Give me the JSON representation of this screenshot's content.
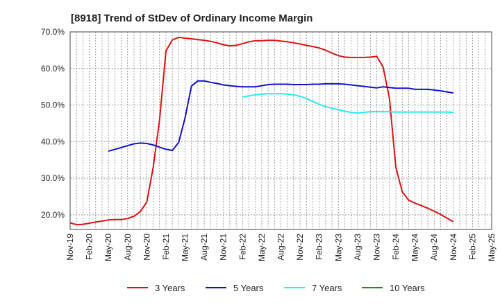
{
  "chart_data": {
    "type": "line",
    "title": "[8918]  Trend of StDev of Ordinary Income Margin",
    "x": [
      "Nov-19",
      "Feb-20",
      "May-20",
      "Aug-20",
      "Nov-20",
      "Feb-21",
      "May-21",
      "Aug-21",
      "Nov-21",
      "Feb-22",
      "May-22",
      "Aug-22",
      "Nov-22",
      "Feb-23",
      "May-23",
      "Aug-23",
      "Nov-23",
      "Feb-24",
      "May-24",
      "Aug-24",
      "Nov-24",
      "Feb-25",
      "May-25"
    ],
    "y_ticks": [
      "20.0%",
      "30.0%",
      "40.0%",
      "50.0%",
      "60.0%",
      "70.0%"
    ],
    "ylim": [
      16,
      70
    ],
    "grid": true,
    "legend_position": "bottom",
    "series": [
      {
        "name": "3 Years",
        "color": "#dd1111",
        "points": [
          [
            0,
            17.8
          ],
          [
            1,
            17.3
          ],
          [
            2,
            17.4
          ],
          [
            3,
            17.7
          ],
          [
            4,
            18.0
          ],
          [
            5,
            18.3
          ],
          [
            6,
            18.6
          ],
          [
            7,
            18.7
          ],
          [
            8,
            18.7
          ],
          [
            9,
            19.0
          ],
          [
            10,
            19.6
          ],
          [
            11,
            20.9
          ],
          [
            12,
            23.5
          ],
          [
            13,
            33.0
          ],
          [
            14,
            46.0
          ],
          [
            15,
            64.8
          ],
          [
            16,
            67.8
          ],
          [
            17,
            68.5
          ],
          [
            18,
            68.3
          ],
          [
            19,
            68.1
          ],
          [
            20,
            67.9
          ],
          [
            21,
            67.7
          ],
          [
            22,
            67.4
          ],
          [
            23,
            67.0
          ],
          [
            24,
            66.5
          ],
          [
            25,
            66.2
          ],
          [
            26,
            66.3
          ],
          [
            27,
            66.8
          ],
          [
            28,
            67.3
          ],
          [
            29,
            67.6
          ],
          [
            30,
            67.6
          ],
          [
            31,
            67.7
          ],
          [
            32,
            67.7
          ],
          [
            33,
            67.5
          ],
          [
            34,
            67.3
          ],
          [
            35,
            67.0
          ],
          [
            36,
            66.7
          ],
          [
            37,
            66.3
          ],
          [
            38,
            66.0
          ],
          [
            39,
            65.6
          ],
          [
            40,
            65.0
          ],
          [
            41,
            64.2
          ],
          [
            42,
            63.5
          ],
          [
            43,
            63.1
          ],
          [
            44,
            63.0
          ],
          [
            45,
            63.0
          ],
          [
            46,
            63.0
          ],
          [
            47,
            63.1
          ],
          [
            48,
            63.3
          ],
          [
            49,
            60.4
          ],
          [
            50,
            51.8
          ],
          [
            51,
            33.0
          ],
          [
            52,
            26.3
          ],
          [
            53,
            24.0
          ],
          [
            54,
            23.2
          ],
          [
            55,
            22.5
          ],
          [
            56,
            21.8
          ],
          [
            57,
            21.0
          ],
          [
            58,
            20.1
          ],
          [
            59,
            19.1
          ],
          [
            60,
            18.1
          ]
        ]
      },
      {
        "name": "5 Years",
        "color": "#1111cc",
        "points": [
          [
            6,
            37.4
          ],
          [
            7,
            37.9
          ],
          [
            8,
            38.4
          ],
          [
            9,
            38.9
          ],
          [
            10,
            39.4
          ],
          [
            11,
            39.6
          ],
          [
            12,
            39.5
          ],
          [
            13,
            39.1
          ],
          [
            14,
            38.5
          ],
          [
            15,
            37.9
          ],
          [
            16,
            37.6
          ],
          [
            17,
            39.8
          ],
          [
            18,
            46.5
          ],
          [
            19,
            55.2
          ],
          [
            20,
            56.6
          ],
          [
            21,
            56.6
          ],
          [
            22,
            56.2
          ],
          [
            23,
            55.9
          ],
          [
            24,
            55.5
          ],
          [
            25,
            55.3
          ],
          [
            26,
            55.1
          ],
          [
            27,
            55.0
          ],
          [
            28,
            55.0
          ],
          [
            29,
            55.0
          ],
          [
            30,
            55.3
          ],
          [
            31,
            55.6
          ],
          [
            32,
            55.7
          ],
          [
            33,
            55.7
          ],
          [
            34,
            55.7
          ],
          [
            35,
            55.6
          ],
          [
            36,
            55.6
          ],
          [
            37,
            55.6
          ],
          [
            38,
            55.7
          ],
          [
            39,
            55.7
          ],
          [
            40,
            55.8
          ],
          [
            41,
            55.8
          ],
          [
            42,
            55.8
          ],
          [
            43,
            55.7
          ],
          [
            44,
            55.5
          ],
          [
            45,
            55.3
          ],
          [
            46,
            55.1
          ],
          [
            47,
            54.9
          ],
          [
            48,
            54.7
          ],
          [
            49,
            55.0
          ],
          [
            50,
            54.8
          ],
          [
            51,
            54.6
          ],
          [
            52,
            54.6
          ],
          [
            53,
            54.6
          ],
          [
            54,
            54.3
          ],
          [
            55,
            54.3
          ],
          [
            56,
            54.3
          ],
          [
            57,
            54.1
          ],
          [
            58,
            53.9
          ],
          [
            59,
            53.6
          ],
          [
            60,
            53.3
          ]
        ]
      },
      {
        "name": "7 Years",
        "color": "#22eeee",
        "points": [
          [
            27,
            52.2
          ],
          [
            28,
            52.5
          ],
          [
            29,
            52.8
          ],
          [
            30,
            53.0
          ],
          [
            31,
            53.1
          ],
          [
            32,
            53.1
          ],
          [
            33,
            53.1
          ],
          [
            34,
            53.0
          ],
          [
            35,
            52.8
          ],
          [
            36,
            52.4
          ],
          [
            37,
            51.8
          ],
          [
            38,
            51.0
          ],
          [
            39,
            50.2
          ],
          [
            40,
            49.6
          ],
          [
            41,
            49.1
          ],
          [
            42,
            48.7
          ],
          [
            43,
            48.3
          ],
          [
            44,
            48.0
          ],
          [
            45,
            47.8
          ],
          [
            46,
            48.0
          ],
          [
            47,
            48.2
          ],
          [
            48,
            48.2
          ],
          [
            49,
            48.2
          ],
          [
            50,
            48.2
          ],
          [
            51,
            48.1
          ],
          [
            52,
            48.1
          ],
          [
            53,
            48.1
          ],
          [
            54,
            48.1
          ],
          [
            55,
            48.1
          ],
          [
            56,
            48.1
          ],
          [
            57,
            48.1
          ],
          [
            58,
            48.1
          ],
          [
            59,
            48.1
          ],
          [
            60,
            48.0
          ]
        ]
      },
      {
        "name": "10 Years",
        "color": "#228822",
        "points": []
      }
    ]
  }
}
